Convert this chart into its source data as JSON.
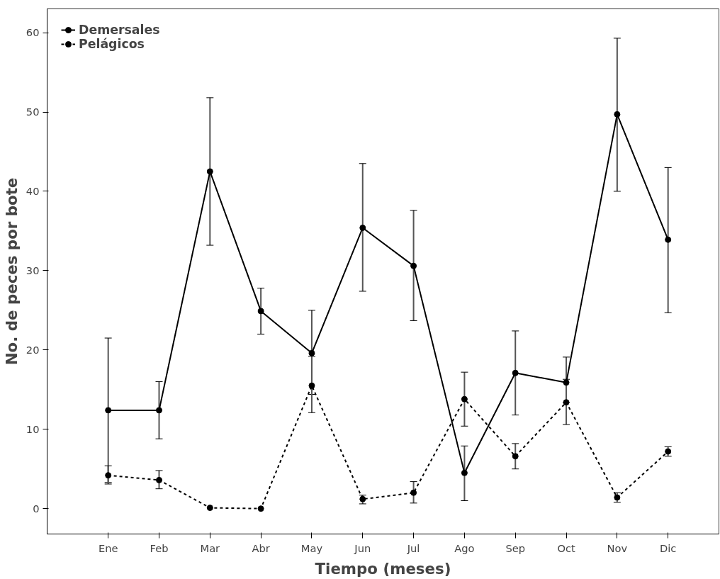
{
  "chart_data": {
    "type": "line",
    "xlabel": "Tiempo (meses)",
    "ylabel": "No. de peces por bote",
    "categories": [
      "Ene",
      "Feb",
      "Mar",
      "Abr",
      "May",
      "Jun",
      "Jul",
      "Ago",
      "Sep",
      "Oct",
      "Nov",
      "Dic"
    ],
    "series": [
      {
        "name": "Demersales",
        "color": "#000000",
        "line_style": "solid",
        "values": [
          12.4,
          12.4,
          42.5,
          24.9,
          19.6,
          35.4,
          30.6,
          4.5,
          17.1,
          15.9,
          49.7,
          33.9
        ],
        "errors": [
          [
            3.3,
            21.5
          ],
          [
            8.8,
            16.0
          ],
          [
            33.2,
            51.8
          ],
          [
            22.0,
            27.8
          ],
          [
            14.4,
            25.0
          ],
          [
            27.4,
            43.5
          ],
          [
            23.7,
            37.6
          ],
          [
            1.0,
            7.9
          ],
          [
            11.8,
            22.4
          ],
          [
            13.4,
            19.1
          ],
          [
            40.0,
            59.3
          ],
          [
            24.7,
            43.0
          ]
        ]
      },
      {
        "name": "Pelágicos",
        "color": "#000000",
        "line_style": "dashed",
        "values": [
          4.2,
          3.6,
          0.1,
          0.0,
          15.5,
          1.2,
          2.0,
          13.8,
          6.6,
          13.4,
          1.4,
          7.2
        ],
        "errors": [
          [
            3.1,
            5.4
          ],
          [
            2.5,
            4.8
          ],
          null,
          null,
          [
            12.1,
            19.2
          ],
          [
            0.6,
            1.7
          ],
          [
            0.7,
            3.4
          ],
          [
            10.4,
            17.2
          ],
          [
            5.0,
            8.2
          ],
          [
            10.6,
            16.3
          ],
          [
            0.8,
            2.0
          ],
          [
            6.6,
            7.8
          ]
        ]
      }
    ],
    "ylim": [
      -3.2,
      63
    ],
    "yticks": [
      0,
      10,
      20,
      30,
      40,
      50,
      60
    ],
    "marker": "circle",
    "grid": false,
    "legend": "top left"
  }
}
